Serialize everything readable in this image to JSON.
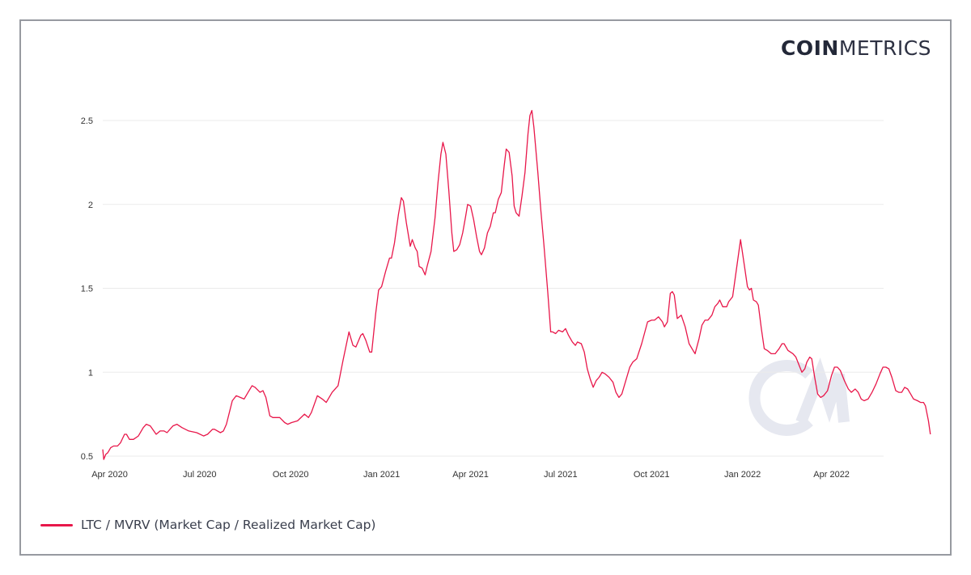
{
  "brand": {
    "logo_bold": "COIN",
    "logo_light": "METRICS",
    "watermark": "CM"
  },
  "colors": {
    "line": "#e8174a",
    "grid": "#ebebeb",
    "frame": "#979aa0",
    "watermark": "#e6e8f0"
  },
  "legend": {
    "label": "LTC / MVRV (Market Cap / Realized Market Cap)"
  },
  "chart_data": {
    "type": "line",
    "title": "",
    "xlabel": "",
    "ylabel": "",
    "ylim": [
      0.5,
      2.6
    ],
    "yticks": [
      0.5,
      1,
      1.5,
      2,
      2.5
    ],
    "ytick_labels": [
      "0.5",
      "1",
      "1.5",
      "2",
      "2.5"
    ],
    "xticks": [
      "Apr 2020",
      "Jul 2020",
      "Oct 2020",
      "Jan 2021",
      "Apr 2021",
      "Jul 2021",
      "Oct 2021",
      "Jan 2022",
      "Apr 2022"
    ],
    "x_range": [
      "2020-03-25",
      "2022-05-12"
    ],
    "grid": true,
    "legend_position": "bottom-left",
    "series": [
      {
        "name": "LTC / MVRV (Market Cap / Realized Market Cap)",
        "x_unit": "days since 2020-03-25",
        "points": [
          [
            0,
            0.54
          ],
          [
            1,
            0.48
          ],
          [
            3,
            0.51
          ],
          [
            5,
            0.52
          ],
          [
            8,
            0.55
          ],
          [
            11,
            0.56
          ],
          [
            15,
            0.56
          ],
          [
            18,
            0.58
          ],
          [
            22,
            0.63
          ],
          [
            24,
            0.63
          ],
          [
            27,
            0.6
          ],
          [
            31,
            0.6
          ],
          [
            36,
            0.62
          ],
          [
            41,
            0.67
          ],
          [
            44,
            0.69
          ],
          [
            48,
            0.68
          ],
          [
            54,
            0.63
          ],
          [
            58,
            0.65
          ],
          [
            62,
            0.65
          ],
          [
            65,
            0.64
          ],
          [
            71,
            0.68
          ],
          [
            75,
            0.69
          ],
          [
            80,
            0.67
          ],
          [
            87,
            0.65
          ],
          [
            95,
            0.64
          ],
          [
            102,
            0.62
          ],
          [
            106,
            0.63
          ],
          [
            111,
            0.66
          ],
          [
            113,
            0.66
          ],
          [
            119,
            0.64
          ],
          [
            122,
            0.65
          ],
          [
            125,
            0.69
          ],
          [
            131,
            0.83
          ],
          [
            135,
            0.86
          ],
          [
            139,
            0.85
          ],
          [
            143,
            0.84
          ],
          [
            147,
            0.88
          ],
          [
            151,
            0.92
          ],
          [
            154,
            0.91
          ],
          [
            159,
            0.88
          ],
          [
            162,
            0.89
          ],
          [
            165,
            0.85
          ],
          [
            169,
            0.74
          ],
          [
            172,
            0.73
          ],
          [
            179,
            0.73
          ],
          [
            184,
            0.7
          ],
          [
            187,
            0.69
          ],
          [
            191,
            0.7
          ],
          [
            197,
            0.71
          ],
          [
            204,
            0.75
          ],
          [
            208,
            0.73
          ],
          [
            211,
            0.76
          ],
          [
            217,
            0.86
          ],
          [
            222,
            0.84
          ],
          [
            226,
            0.82
          ],
          [
            232,
            0.88
          ],
          [
            238,
            0.92
          ],
          [
            243,
            1.07
          ],
          [
            249,
            1.24
          ],
          [
            253,
            1.16
          ],
          [
            256,
            1.15
          ],
          [
            261,
            1.22
          ],
          [
            263,
            1.23
          ],
          [
            266,
            1.19
          ],
          [
            270,
            1.12
          ],
          [
            272,
            1.12
          ],
          [
            276,
            1.35
          ],
          [
            279,
            1.49
          ],
          [
            282,
            1.51
          ],
          [
            286,
            1.6
          ],
          [
            290,
            1.68
          ],
          [
            292,
            1.68
          ],
          [
            295,
            1.77
          ],
          [
            299,
            1.94
          ],
          [
            302,
            2.04
          ],
          [
            304,
            2.02
          ],
          [
            307,
            1.89
          ],
          [
            311,
            1.75
          ],
          [
            313,
            1.79
          ],
          [
            316,
            1.74
          ],
          [
            318,
            1.72
          ],
          [
            320,
            1.63
          ],
          [
            323,
            1.62
          ],
          [
            326,
            1.58
          ],
          [
            328,
            1.63
          ],
          [
            332,
            1.72
          ],
          [
            336,
            1.92
          ],
          [
            339,
            2.13
          ],
          [
            342,
            2.3
          ],
          [
            344,
            2.37
          ],
          [
            347,
            2.3
          ],
          [
            350,
            2.08
          ],
          [
            353,
            1.83
          ],
          [
            355,
            1.72
          ],
          [
            358,
            1.73
          ],
          [
            361,
            1.76
          ],
          [
            364,
            1.83
          ],
          [
            367,
            1.93
          ],
          [
            369,
            2
          ],
          [
            372,
            1.99
          ],
          [
            375,
            1.91
          ],
          [
            378,
            1.81
          ],
          [
            381,
            1.72
          ],
          [
            383,
            1.7
          ],
          [
            386,
            1.74
          ],
          [
            389,
            1.83
          ],
          [
            392,
            1.87
          ],
          [
            395,
            1.95
          ],
          [
            397,
            1.95
          ],
          [
            400,
            2.03
          ],
          [
            403,
            2.07
          ],
          [
            406,
            2.23
          ],
          [
            408,
            2.33
          ],
          [
            411,
            2.31
          ],
          [
            414,
            2.17
          ],
          [
            416,
            1.99
          ],
          [
            418,
            1.95
          ],
          [
            421,
            1.93
          ],
          [
            424,
            2.05
          ],
          [
            427,
            2.19
          ],
          [
            430,
            2.42
          ],
          [
            432,
            2.53
          ],
          [
            434,
            2.56
          ],
          [
            436,
            2.46
          ],
          [
            440,
            2.19
          ],
          [
            443,
            1.97
          ],
          [
            446,
            1.77
          ],
          [
            450,
            1.48
          ],
          [
            453,
            1.24
          ],
          [
            455,
            1.24
          ],
          [
            458,
            1.23
          ],
          [
            461,
            1.25
          ],
          [
            465,
            1.24
          ],
          [
            468,
            1.26
          ],
          [
            471,
            1.22
          ],
          [
            475,
            1.18
          ],
          [
            478,
            1.16
          ],
          [
            480,
            1.18
          ],
          [
            484,
            1.17
          ],
          [
            487,
            1.12
          ],
          [
            490,
            1.02
          ],
          [
            493,
            0.96
          ],
          [
            496,
            0.91
          ],
          [
            499,
            0.95
          ],
          [
            502,
            0.97
          ],
          [
            505,
            1
          ],
          [
            508,
            0.99
          ],
          [
            512,
            0.97
          ],
          [
            516,
            0.94
          ],
          [
            519,
            0.88
          ],
          [
            522,
            0.85
          ],
          [
            525,
            0.87
          ],
          [
            529,
            0.95
          ],
          [
            533,
            1.03
          ],
          [
            536,
            1.06
          ],
          [
            540,
            1.08
          ],
          [
            545,
            1.17
          ],
          [
            551,
            1.3
          ],
          [
            555,
            1.31
          ],
          [
            558,
            1.31
          ],
          [
            562,
            1.33
          ],
          [
            566,
            1.3
          ],
          [
            568,
            1.27
          ],
          [
            571,
            1.3
          ],
          [
            574,
            1.47
          ],
          [
            576,
            1.48
          ],
          [
            578,
            1.46
          ],
          [
            581,
            1.32
          ],
          [
            585,
            1.34
          ],
          [
            589,
            1.27
          ],
          [
            593,
            1.17
          ],
          [
            597,
            1.13
          ],
          [
            599,
            1.11
          ],
          [
            603,
            1.2
          ],
          [
            606,
            1.28
          ],
          [
            609,
            1.31
          ],
          [
            612,
            1.31
          ],
          [
            616,
            1.34
          ],
          [
            619,
            1.39
          ],
          [
            622,
            1.41
          ],
          [
            624,
            1.43
          ],
          [
            627,
            1.39
          ],
          [
            631,
            1.39
          ],
          [
            633,
            1.42
          ],
          [
            637,
            1.45
          ],
          [
            641,
            1.62
          ],
          [
            645,
            1.79
          ],
          [
            649,
            1.63
          ],
          [
            652,
            1.51
          ],
          [
            654,
            1.49
          ],
          [
            656,
            1.5
          ],
          [
            658,
            1.43
          ],
          [
            661,
            1.42
          ],
          [
            663,
            1.4
          ],
          [
            666,
            1.26
          ],
          [
            669,
            1.14
          ],
          [
            672,
            1.13
          ],
          [
            676,
            1.11
          ],
          [
            680,
            1.11
          ],
          [
            684,
            1.14
          ],
          [
            687,
            1.17
          ],
          [
            689,
            1.17
          ],
          [
            693,
            1.13
          ],
          [
            698,
            1.11
          ],
          [
            701,
            1.09
          ],
          [
            705,
            1.03
          ],
          [
            707,
            1
          ],
          [
            710,
            1.02
          ],
          [
            712,
            1.06
          ],
          [
            715,
            1.09
          ],
          [
            717,
            1.08
          ],
          [
            720,
            0.97
          ],
          [
            723,
            0.87
          ],
          [
            726,
            0.85
          ],
          [
            729,
            0.86
          ],
          [
            733,
            0.89
          ],
          [
            737,
            0.98
          ],
          [
            740,
            1.03
          ],
          [
            743,
            1.03
          ],
          [
            746,
            1.01
          ],
          [
            750,
            0.95
          ],
          [
            754,
            0.9
          ],
          [
            757,
            0.88
          ],
          [
            761,
            0.9
          ],
          [
            764,
            0.88
          ],
          [
            767,
            0.84
          ],
          [
            770,
            0.83
          ],
          [
            774,
            0.84
          ],
          [
            778,
            0.88
          ],
          [
            782,
            0.93
          ],
          [
            786,
            0.99
          ],
          [
            789,
            1.03
          ],
          [
            792,
            1.03
          ],
          [
            795,
            1.02
          ],
          [
            798,
            0.97
          ],
          [
            802,
            0.89
          ],
          [
            805,
            0.88
          ],
          [
            808,
            0.88
          ],
          [
            811,
            0.91
          ],
          [
            814,
            0.9
          ],
          [
            817,
            0.87
          ],
          [
            820,
            0.84
          ],
          [
            824,
            0.83
          ],
          [
            827,
            0.82
          ],
          [
            830,
            0.82
          ],
          [
            832,
            0.8
          ],
          [
            835,
            0.71
          ],
          [
            837,
            0.63
          ]
        ]
      }
    ]
  }
}
